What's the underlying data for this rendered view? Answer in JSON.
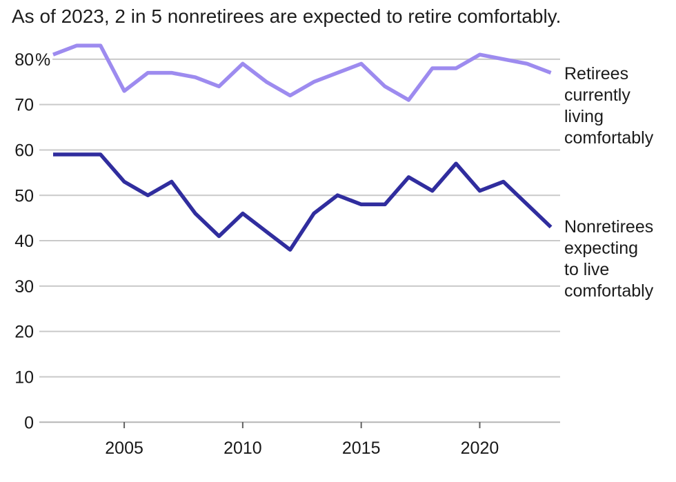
{
  "title": "As of 2023, 2 in 5 nonretirees are expected to retire comfortably.",
  "unit": "%",
  "chart_data": {
    "type": "line",
    "x": [
      2002,
      2003,
      2004,
      2005,
      2006,
      2007,
      2008,
      2009,
      2010,
      2011,
      2012,
      2013,
      2014,
      2015,
      2016,
      2017,
      2018,
      2019,
      2020,
      2021,
      2022,
      2023
    ],
    "series": [
      {
        "name": "Retirees currently living comfortably",
        "label_lines": [
          "Retirees",
          "currently",
          "living",
          "comfortably"
        ],
        "color": "#9d8bef",
        "values": [
          81,
          83,
          83,
          73,
          77,
          77,
          76,
          74,
          79,
          75,
          72,
          75,
          77,
          79,
          74,
          71,
          78,
          78,
          81,
          80,
          79,
          77
        ]
      },
      {
        "name": "Nonretirees expecting to live comfortably",
        "label_lines": [
          "Nonretirees",
          "expecting",
          "to live",
          "comfortably"
        ],
        "color": "#302d9e",
        "values": [
          59,
          59,
          59,
          53,
          50,
          53,
          46,
          41,
          46,
          42,
          38,
          46,
          50,
          48,
          48,
          54,
          51,
          57,
          51,
          53,
          48,
          43
        ]
      }
    ],
    "y_ticks": [
      {
        "value": 80,
        "label": "80%"
      },
      {
        "value": 70,
        "label": "70"
      },
      {
        "value": 60,
        "label": "60"
      },
      {
        "value": 50,
        "label": "50"
      },
      {
        "value": 40,
        "label": "40"
      },
      {
        "value": 30,
        "label": "30"
      },
      {
        "value": 20,
        "label": "20"
      },
      {
        "value": 10,
        "label": "10"
      },
      {
        "value": 0,
        "label": "0"
      }
    ],
    "x_ticks": [
      {
        "value": 2005,
        "label": "2005"
      },
      {
        "value": 2010,
        "label": "2010"
      },
      {
        "value": 2015,
        "label": "2015"
      },
      {
        "value": 2020,
        "label": "2020"
      }
    ],
    "ylim": [
      0,
      86
    ],
    "xlabel": "",
    "ylabel": "",
    "grid": "horizontal",
    "legend_position": "right"
  },
  "colors": {
    "retirees_line": "#9d8bef",
    "nonretirees_line": "#302d9e",
    "gridline": "#c9c9c9",
    "axis_line": "#b5b5b5",
    "tick": "#616161",
    "text": "#1b1b1b"
  }
}
